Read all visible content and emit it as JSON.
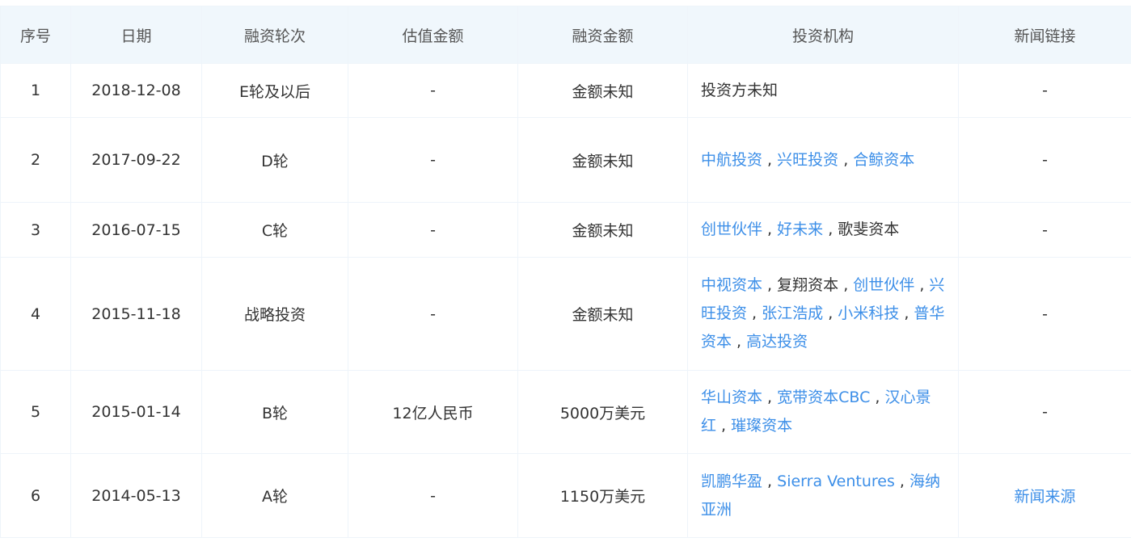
{
  "headers": [
    "序号",
    "日期",
    "融资轮次",
    "估值金额",
    "融资金额",
    "投资机构",
    "新闻链接"
  ],
  "colors": {
    "link": "#3d8fe8",
    "header_bg": "#f0f7fc",
    "text": "#333333"
  },
  "rows": [
    {
      "index": "1",
      "date": "2018-12-08",
      "round": "E轮及以后",
      "valuation": "-",
      "amount": "金额未知",
      "investors": [
        {
          "name": "投资方未知",
          "link": false
        }
      ],
      "news": "-",
      "news_link": false
    },
    {
      "index": "2",
      "date": "2017-09-22",
      "round": "D轮",
      "valuation": "-",
      "amount": "金额未知",
      "investors": [
        {
          "name": "中航投资",
          "link": true
        },
        {
          "name": "兴旺投资",
          "link": true
        },
        {
          "name": "合鲸资本",
          "link": true
        }
      ],
      "news": "-",
      "news_link": false
    },
    {
      "index": "3",
      "date": "2016-07-15",
      "round": "C轮",
      "valuation": "-",
      "amount": "金额未知",
      "investors": [
        {
          "name": "创世伙伴",
          "link": true
        },
        {
          "name": "好未来",
          "link": true
        },
        {
          "name": "歌斐资本",
          "link": false
        }
      ],
      "news": "-",
      "news_link": false
    },
    {
      "index": "4",
      "date": "2015-11-18",
      "round": "战略投资",
      "valuation": "-",
      "amount": "金额未知",
      "investors": [
        {
          "name": "中视资本",
          "link": true
        },
        {
          "name": "复翔资本",
          "link": false
        },
        {
          "name": "创世伙伴",
          "link": true
        },
        {
          "name": "兴旺投资",
          "link": true
        },
        {
          "name": "张江浩成",
          "link": true
        },
        {
          "name": "小米科技",
          "link": true
        },
        {
          "name": "普华资本",
          "link": true
        },
        {
          "name": "高达投资",
          "link": true
        }
      ],
      "news": "-",
      "news_link": false
    },
    {
      "index": "5",
      "date": "2015-01-14",
      "round": "B轮",
      "valuation": "12亿人民币",
      "amount": "5000万美元",
      "investors": [
        {
          "name": "华山资本",
          "link": true
        },
        {
          "name": "宽带资本CBC",
          "link": true
        },
        {
          "name": "汉心景红",
          "link": true
        },
        {
          "name": "璀璨资本",
          "link": true
        }
      ],
      "news": "-",
      "news_link": false
    },
    {
      "index": "6",
      "date": "2014-05-13",
      "round": "A轮",
      "valuation": "-",
      "amount": "1150万美元",
      "investors": [
        {
          "name": "凯鹏华盈",
          "link": true
        },
        {
          "name": "Sierra Ventures",
          "link": true
        },
        {
          "name": "海纳亚洲",
          "link": true
        }
      ],
      "news": "新闻来源",
      "news_link": true
    }
  ],
  "separator": " , "
}
